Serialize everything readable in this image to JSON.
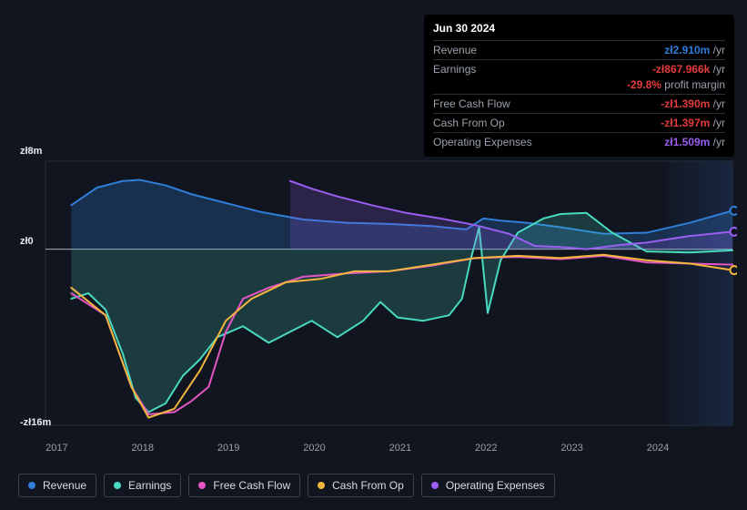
{
  "chart": {
    "type": "area-line",
    "background_color": "#10151f",
    "plot_background_color": "#10151f",
    "forecast_band_color": "#1a2742",
    "forecast_start_x": 7.25,
    "grid_color": "#2a2f38",
    "axis_text_color": "#9aa0ab",
    "title_fontsize": 12,
    "label_fontsize": 11,
    "line_width": 2,
    "y_axis": {
      "min": -16,
      "max": 8,
      "ticks": [
        {
          "value": 8,
          "label": "zł8m"
        },
        {
          "value": 0,
          "label": "zł0"
        },
        {
          "value": -16,
          "label": "-zł16m"
        }
      ],
      "zero_line_color": "#c8cdd6"
    },
    "x_axis": {
      "min": 0,
      "max": 8,
      "labels": [
        "2017",
        "2018",
        "2019",
        "2020",
        "2021",
        "2022",
        "2023",
        "2024"
      ]
    },
    "series": [
      {
        "key": "revenue",
        "name": "Revenue",
        "color": "#2f7ed8",
        "fill_opacity": 0.25,
        "points": [
          [
            0.3,
            4.0
          ],
          [
            0.6,
            5.6
          ],
          [
            0.9,
            6.2
          ],
          [
            1.1,
            6.3
          ],
          [
            1.4,
            5.8
          ],
          [
            1.7,
            5.0
          ],
          [
            2.0,
            4.4
          ],
          [
            2.5,
            3.4
          ],
          [
            3.0,
            2.7
          ],
          [
            3.5,
            2.4
          ],
          [
            4.0,
            2.3
          ],
          [
            4.5,
            2.1
          ],
          [
            4.9,
            1.8
          ],
          [
            5.1,
            2.8
          ],
          [
            5.3,
            2.6
          ],
          [
            5.6,
            2.4
          ],
          [
            6.0,
            2.0
          ],
          [
            6.5,
            1.4
          ],
          [
            7.0,
            1.5
          ],
          [
            7.5,
            2.4
          ],
          [
            8.0,
            3.5
          ]
        ]
      },
      {
        "key": "earnings",
        "name": "Earnings",
        "color": "#49d9c1",
        "fill_opacity": 0.2,
        "points": [
          [
            0.3,
            -4.5
          ],
          [
            0.5,
            -4.0
          ],
          [
            0.7,
            -5.5
          ],
          [
            0.9,
            -9.5
          ],
          [
            1.05,
            -13.5
          ],
          [
            1.2,
            -14.8
          ],
          [
            1.4,
            -14.0
          ],
          [
            1.6,
            -11.5
          ],
          [
            1.8,
            -10.0
          ],
          [
            2.0,
            -8.0
          ],
          [
            2.3,
            -7.0
          ],
          [
            2.6,
            -8.5
          ],
          [
            2.9,
            -7.3
          ],
          [
            3.1,
            -6.5
          ],
          [
            3.4,
            -8.0
          ],
          [
            3.7,
            -6.5
          ],
          [
            3.9,
            -4.8
          ],
          [
            4.1,
            -6.2
          ],
          [
            4.4,
            -6.5
          ],
          [
            4.7,
            -6.0
          ],
          [
            4.85,
            -4.5
          ],
          [
            4.95,
            -1.0
          ],
          [
            5.05,
            2.0
          ],
          [
            5.15,
            -5.8
          ],
          [
            5.3,
            -1.0
          ],
          [
            5.5,
            1.5
          ],
          [
            5.8,
            2.8
          ],
          [
            6.0,
            3.2
          ],
          [
            6.3,
            3.3
          ],
          [
            6.6,
            1.5
          ],
          [
            7.0,
            -0.2
          ],
          [
            7.5,
            -0.3
          ],
          [
            8.0,
            -0.1
          ]
        ]
      },
      {
        "key": "fcf",
        "name": "Free Cash Flow",
        "color": "#e356c3",
        "fill_opacity": 0.0,
        "points": [
          [
            0.3,
            -4.0
          ],
          [
            0.7,
            -6.0
          ],
          [
            1.0,
            -12.5
          ],
          [
            1.2,
            -15.0
          ],
          [
            1.5,
            -14.8
          ],
          [
            1.7,
            -13.8
          ],
          [
            1.9,
            -12.5
          ],
          [
            2.1,
            -7.5
          ],
          [
            2.3,
            -4.5
          ],
          [
            2.6,
            -3.5
          ],
          [
            3.0,
            -2.5
          ],
          [
            3.5,
            -2.2
          ],
          [
            4.0,
            -2.0
          ],
          [
            4.5,
            -1.5
          ],
          [
            5.0,
            -0.8
          ],
          [
            5.5,
            -0.7
          ],
          [
            6.0,
            -0.9
          ],
          [
            6.5,
            -0.6
          ],
          [
            7.0,
            -1.2
          ],
          [
            7.5,
            -1.3
          ],
          [
            8.0,
            -1.4
          ]
        ]
      },
      {
        "key": "cfo",
        "name": "Cash From Op",
        "color": "#f2b53f",
        "fill_opacity": 0.0,
        "points": [
          [
            0.3,
            -3.5
          ],
          [
            0.7,
            -6.0
          ],
          [
            1.0,
            -12.5
          ],
          [
            1.2,
            -15.3
          ],
          [
            1.5,
            -14.5
          ],
          [
            1.8,
            -11.0
          ],
          [
            2.1,
            -6.5
          ],
          [
            2.4,
            -4.5
          ],
          [
            2.8,
            -3.0
          ],
          [
            3.2,
            -2.7
          ],
          [
            3.6,
            -2.0
          ],
          [
            4.0,
            -2.0
          ],
          [
            4.5,
            -1.4
          ],
          [
            5.0,
            -0.8
          ],
          [
            5.5,
            -0.6
          ],
          [
            6.0,
            -0.8
          ],
          [
            6.5,
            -0.5
          ],
          [
            7.0,
            -1.0
          ],
          [
            7.5,
            -1.3
          ],
          [
            8.0,
            -1.9
          ]
        ]
      },
      {
        "key": "opex",
        "name": "Operating Expenses",
        "color": "#9a5ef0",
        "fill_opacity": 0.2,
        "start_x": 2.85,
        "points": [
          [
            2.85,
            6.2
          ],
          [
            3.1,
            5.5
          ],
          [
            3.4,
            4.8
          ],
          [
            3.8,
            4.0
          ],
          [
            4.2,
            3.3
          ],
          [
            4.6,
            2.8
          ],
          [
            5.0,
            2.2
          ],
          [
            5.4,
            1.4
          ],
          [
            5.7,
            0.3
          ],
          [
            6.0,
            0.2
          ],
          [
            6.3,
            0.0
          ],
          [
            6.7,
            0.4
          ],
          [
            7.0,
            0.6
          ],
          [
            7.5,
            1.2
          ],
          [
            8.0,
            1.6
          ]
        ]
      }
    ],
    "end_markers": [
      {
        "series": "revenue",
        "color": "#2f7ed8",
        "y": 3.5
      },
      {
        "series": "opex",
        "color": "#9a5ef0",
        "y": 1.6
      },
      {
        "series": "cfo",
        "color": "#f2b53f",
        "y": -1.9
      }
    ]
  },
  "tooltip": {
    "date": "Jun 30 2024",
    "unit_suffix": "/yr",
    "rows": [
      {
        "label": "Revenue",
        "value": "zł2.910m",
        "color": "#2f7ed8"
      },
      {
        "label": "Earnings",
        "value": "-zł867.966k",
        "color": "#e33b3b"
      },
      {
        "label": "",
        "value": "-29.8%",
        "color": "#e33b3b",
        "extra_text": "profit margin",
        "is_extra": true
      },
      {
        "label": "Free Cash Flow",
        "value": "-zł1.390m",
        "color": "#e33b3b"
      },
      {
        "label": "Cash From Op",
        "value": "-zł1.397m",
        "color": "#e33b3b"
      },
      {
        "label": "Operating Expenses",
        "value": "zł1.509m",
        "color": "#9a5ef0"
      }
    ]
  },
  "legend": {
    "items": [
      {
        "key": "revenue",
        "label": "Revenue",
        "color": "#2f7ed8"
      },
      {
        "key": "earnings",
        "label": "Earnings",
        "color": "#49d9c1"
      },
      {
        "key": "fcf",
        "label": "Free Cash Flow",
        "color": "#e356c3"
      },
      {
        "key": "cfo",
        "label": "Cash From Op",
        "color": "#f2b53f"
      },
      {
        "key": "opex",
        "label": "Operating Expenses",
        "color": "#9a5ef0"
      }
    ]
  }
}
